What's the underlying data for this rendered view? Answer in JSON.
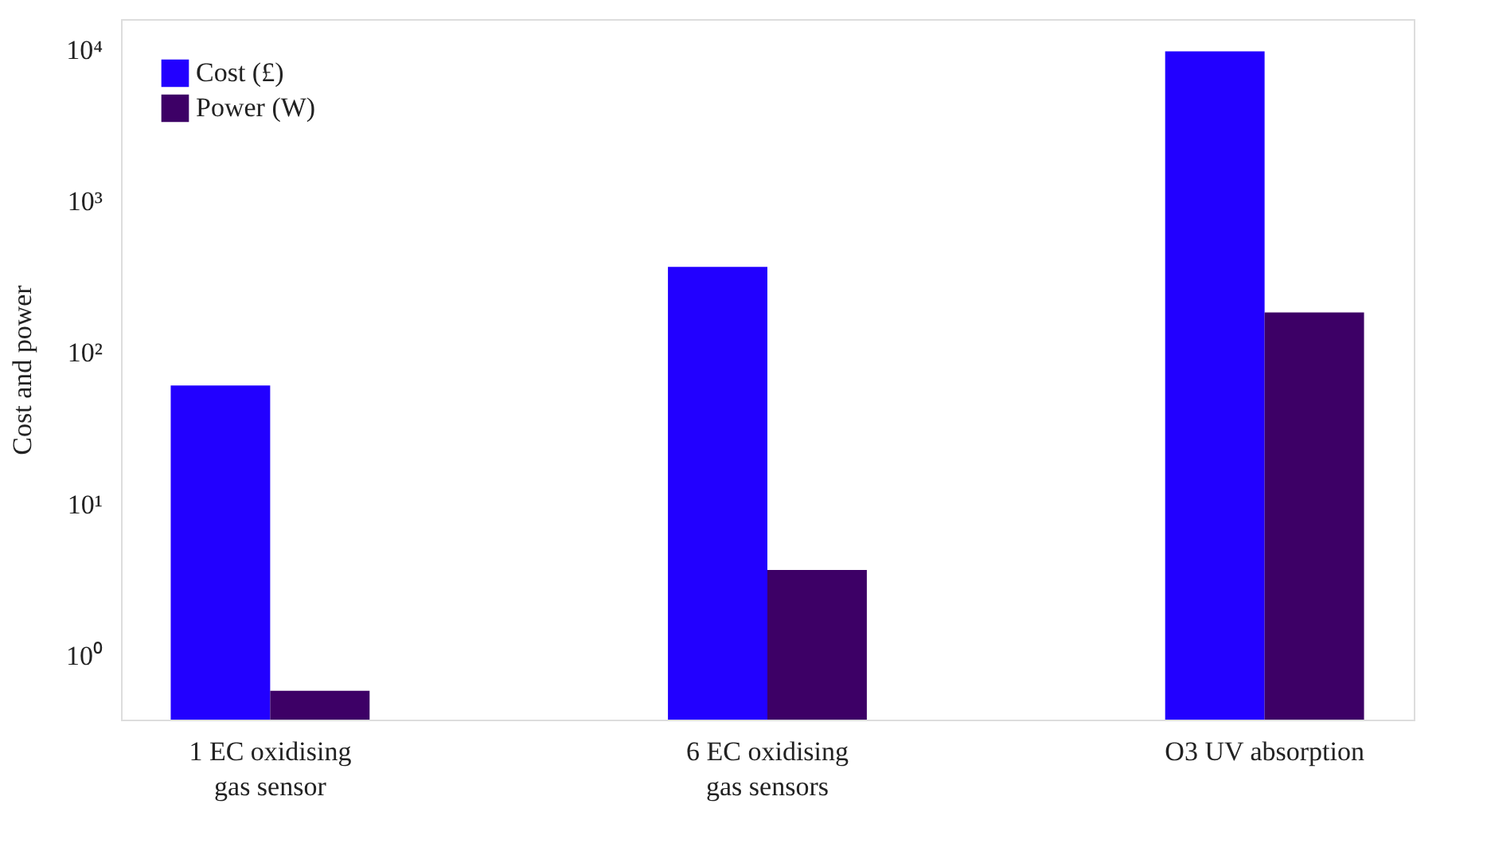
{
  "chart_data": {
    "type": "bar",
    "ylabel": "Cost and power",
    "categories": [
      "1 EC oxidising gas sensor",
      "6 EC oxidising gas sensors",
      "O3 UV absorption"
    ],
    "series": [
      {
        "name": "Cost (£)",
        "color": "#2200ff",
        "values": [
          61,
          370,
          9800
        ]
      },
      {
        "name": "Power (W)",
        "color": "#3d0066",
        "values": [
          0.59,
          3.7,
          185
        ]
      }
    ],
    "log": "y",
    "ylim": [
      0.38,
      16000
    ],
    "yticks": [
      {
        "value": 1,
        "label": "10⁰"
      },
      {
        "value": 10,
        "label": "10¹"
      },
      {
        "value": 100,
        "label": "10²"
      },
      {
        "value": 1000,
        "label": "10³"
      },
      {
        "value": 10000,
        "label": "10⁴"
      }
    ],
    "grid": false,
    "legend": "top left"
  }
}
